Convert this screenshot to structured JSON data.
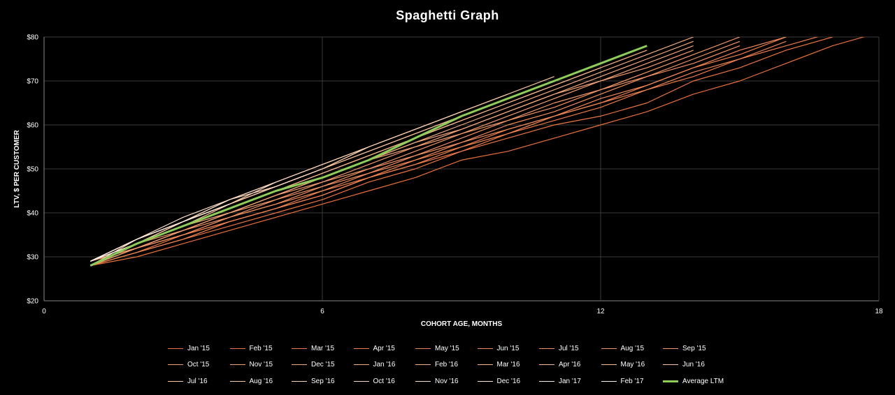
{
  "chart_data": {
    "type": "line",
    "title": "Spaghetti Graph",
    "xlabel": "COHORT AGE, MONTHS",
    "ylabel": "LTV, $  PER CUSTOMER",
    "xlim": [
      0,
      18
    ],
    "ylim": [
      20,
      80
    ],
    "x_ticks": [
      0,
      6,
      12,
      18
    ],
    "y_ticks": [
      20,
      30,
      40,
      50,
      60,
      70,
      80
    ],
    "y_tick_labels": [
      "$20",
      "$30",
      "$40",
      "$50",
      "$60",
      "$70",
      "$80"
    ],
    "grid": true,
    "legend_position": "bottom",
    "series": [
      {
        "name": "Jan '15",
        "color": "#e8703a",
        "x": [
          1,
          2,
          3,
          4,
          5,
          6,
          7,
          8,
          9,
          10,
          11,
          12,
          13,
          14,
          15,
          16,
          17,
          18
        ],
        "y": [
          28,
          30,
          33,
          36,
          39,
          42,
          45,
          48,
          52,
          54,
          57,
          60,
          63,
          67,
          70,
          74,
          78,
          81
        ]
      },
      {
        "name": "Feb '15",
        "color": "#ea7540",
        "x": [
          1,
          2,
          3,
          4,
          5,
          6,
          7,
          8,
          9,
          10,
          11,
          12,
          13,
          14,
          15,
          16,
          17
        ],
        "y": [
          28,
          31,
          34,
          37,
          40,
          43,
          47,
          50,
          54,
          57,
          60,
          62,
          65,
          70,
          73,
          77,
          80
        ]
      },
      {
        "name": "Mar '15",
        "color": "#ec7a46",
        "x": [
          1,
          2,
          3,
          4,
          5,
          6,
          7,
          8,
          9,
          10,
          11,
          12,
          13,
          14,
          15,
          16,
          17
        ],
        "y": [
          28,
          31,
          35,
          38,
          41,
          44,
          48,
          51,
          54,
          58,
          61,
          64,
          68,
          71,
          75,
          78,
          81
        ]
      },
      {
        "name": "Apr '15",
        "color": "#ed7f4c",
        "x": [
          1,
          2,
          3,
          4,
          5,
          6,
          7,
          8,
          9,
          10,
          11,
          12,
          13,
          14,
          15,
          16
        ],
        "y": [
          29,
          32,
          35,
          38,
          41,
          45,
          48,
          52,
          55,
          59,
          62,
          65,
          69,
          73,
          76,
          80
        ]
      },
      {
        "name": "May '15",
        "color": "#ee8452",
        "x": [
          1,
          2,
          3,
          4,
          5,
          6,
          7,
          8,
          9,
          10,
          11,
          12,
          13,
          14,
          15,
          16
        ],
        "y": [
          28,
          31,
          34,
          38,
          41,
          44,
          48,
          51,
          55,
          58,
          62,
          65,
          68,
          72,
          75,
          79
        ]
      },
      {
        "name": "Jun '15",
        "color": "#ef8958",
        "x": [
          1,
          2,
          3,
          4,
          5,
          6,
          7,
          8,
          9,
          10,
          11,
          12,
          13,
          14,
          15,
          16
        ],
        "y": [
          29,
          32,
          35,
          39,
          42,
          45,
          49,
          52,
          56,
          59,
          62,
          66,
          69,
          73,
          77,
          80
        ]
      },
      {
        "name": "Jul '15",
        "color": "#f08e5e",
        "x": [
          1,
          2,
          3,
          4,
          5,
          6,
          7,
          8,
          9,
          10,
          11,
          12,
          13,
          14,
          15
        ],
        "y": [
          28,
          32,
          35,
          39,
          42,
          46,
          49,
          53,
          56,
          60,
          63,
          67,
          71,
          74,
          78
        ]
      },
      {
        "name": "Aug '15",
        "color": "#f19364",
        "x": [
          1,
          2,
          3,
          4,
          5,
          6,
          7,
          8,
          9,
          10,
          11,
          12,
          13,
          14,
          15
        ],
        "y": [
          29,
          32,
          36,
          39,
          43,
          46,
          50,
          53,
          57,
          61,
          64,
          68,
          71,
          75,
          79
        ]
      },
      {
        "name": "Sep '15",
        "color": "#f2986a",
        "x": [
          1,
          2,
          3,
          4,
          5,
          6,
          7,
          8,
          9,
          10,
          11,
          12,
          13,
          14,
          15
        ],
        "y": [
          28,
          32,
          36,
          40,
          43,
          47,
          50,
          54,
          58,
          61,
          65,
          68,
          72,
          76,
          80
        ]
      },
      {
        "name": "Oct '15",
        "color": "#f29d70",
        "x": [
          1,
          2,
          3,
          4,
          5,
          6,
          7,
          8,
          9,
          10,
          11,
          12,
          13,
          14
        ],
        "y": [
          29,
          33,
          36,
          40,
          44,
          47,
          51,
          55,
          58,
          62,
          66,
          70,
          73,
          77
        ]
      },
      {
        "name": "Nov '15",
        "color": "#f3a276",
        "x": [
          1,
          2,
          3,
          4,
          5,
          6,
          7,
          8,
          9,
          10,
          11,
          12,
          13,
          14
        ],
        "y": [
          28,
          32,
          36,
          40,
          44,
          48,
          52,
          55,
          59,
          63,
          67,
          70,
          74,
          78
        ]
      },
      {
        "name": "Dec '15",
        "color": "#f4a77c",
        "x": [
          1,
          2,
          3,
          4,
          5,
          6,
          7,
          8,
          9,
          10,
          11,
          12,
          13,
          14
        ],
        "y": [
          29,
          33,
          37,
          40,
          44,
          48,
          52,
          56,
          59,
          63,
          67,
          71,
          75,
          79
        ]
      },
      {
        "name": "Jan '16",
        "color": "#f5ac82",
        "x": [
          1,
          2,
          3,
          4,
          5,
          6,
          7,
          8,
          9,
          10,
          11,
          12,
          13,
          14
        ],
        "y": [
          28,
          33,
          37,
          41,
          45,
          48,
          52,
          56,
          60,
          64,
          68,
          72,
          76,
          80
        ]
      },
      {
        "name": "Feb '16",
        "color": "#f5b188",
        "x": [
          1,
          2,
          3,
          4,
          5,
          6,
          7,
          8,
          9,
          10,
          11,
          12,
          13
        ],
        "y": [
          29,
          33,
          37,
          41,
          45,
          49,
          53,
          57,
          61,
          65,
          69,
          73,
          77
        ]
      },
      {
        "name": "Mar '16",
        "color": "#f6b68e",
        "x": [
          1,
          2,
          3,
          4,
          5,
          6,
          7,
          8,
          9,
          10,
          11,
          12
        ],
        "y": [
          28,
          33,
          37,
          41,
          45,
          49,
          53,
          57,
          61,
          65,
          69,
          73
        ]
      },
      {
        "name": "Apr '16",
        "color": "#f7bb94",
        "x": [
          1,
          2,
          3,
          4,
          5,
          6,
          7,
          8,
          9,
          10,
          11
        ],
        "y": [
          29,
          33,
          38,
          42,
          46,
          50,
          54,
          58,
          62,
          66,
          70
        ]
      },
      {
        "name": "May '16",
        "color": "#f7c09a",
        "x": [
          1,
          2,
          3,
          4,
          5,
          6,
          7,
          8,
          9,
          10
        ],
        "y": [
          28,
          33,
          37,
          42,
          46,
          50,
          54,
          58,
          62,
          66
        ]
      },
      {
        "name": "Jun '16",
        "color": "#f8c5a0",
        "x": [
          1,
          2,
          3,
          4,
          5,
          6,
          7,
          8,
          9,
          10,
          11
        ],
        "y": [
          29,
          34,
          38,
          42,
          46,
          50,
          55,
          59,
          63,
          67,
          71
        ]
      },
      {
        "name": "Jul '16",
        "color": "#f9caa8",
        "x": [
          1,
          2,
          3,
          4,
          5,
          6,
          7,
          8,
          9,
          10
        ],
        "y": [
          28,
          33,
          38,
          42,
          46,
          50,
          55,
          59,
          63,
          67
        ]
      },
      {
        "name": "Aug '16",
        "color": "#f9cfb0",
        "x": [
          1,
          2,
          3,
          4,
          5,
          6,
          7,
          8,
          9
        ],
        "y": [
          29,
          34,
          38,
          42,
          47,
          51,
          55,
          59,
          63
        ]
      },
      {
        "name": "Sep '16",
        "color": "#fad4b8",
        "x": [
          1,
          2,
          3,
          4,
          5,
          6,
          7
        ],
        "y": [
          28,
          34,
          38,
          43,
          47,
          51,
          55
        ]
      },
      {
        "name": "Oct '16",
        "color": "#fbd9c0",
        "x": [
          1,
          2,
          3,
          4,
          5,
          6
        ],
        "y": [
          29,
          34,
          38,
          43,
          46,
          50
        ]
      },
      {
        "name": "Nov '16",
        "color": "#fcdfc8",
        "x": [
          1,
          2,
          3,
          4,
          5
        ],
        "y": [
          29,
          34,
          39,
          43,
          47
        ]
      },
      {
        "name": "Dec '16",
        "color": "#fde6d4",
        "x": [
          1,
          2,
          3,
          4
        ],
        "y": [
          28,
          33,
          37,
          41
        ]
      },
      {
        "name": "Jan '17",
        "color": "#feeee2",
        "x": [
          1,
          2,
          3,
          4
        ],
        "y": [
          29,
          34,
          38,
          42
        ]
      },
      {
        "name": "Feb '17",
        "color": "#fff6ef",
        "x": [
          1,
          2,
          3
        ],
        "y": [
          29,
          33,
          37
        ]
      },
      {
        "name": "Average LTM",
        "color": "#8fcc5a",
        "x": [
          1,
          2,
          3,
          4,
          5,
          6,
          7,
          8,
          9,
          10,
          11,
          12,
          13
        ],
        "y": [
          28,
          33,
          37,
          41,
          45,
          48,
          52,
          57,
          62,
          66,
          70,
          74,
          78
        ]
      }
    ]
  }
}
